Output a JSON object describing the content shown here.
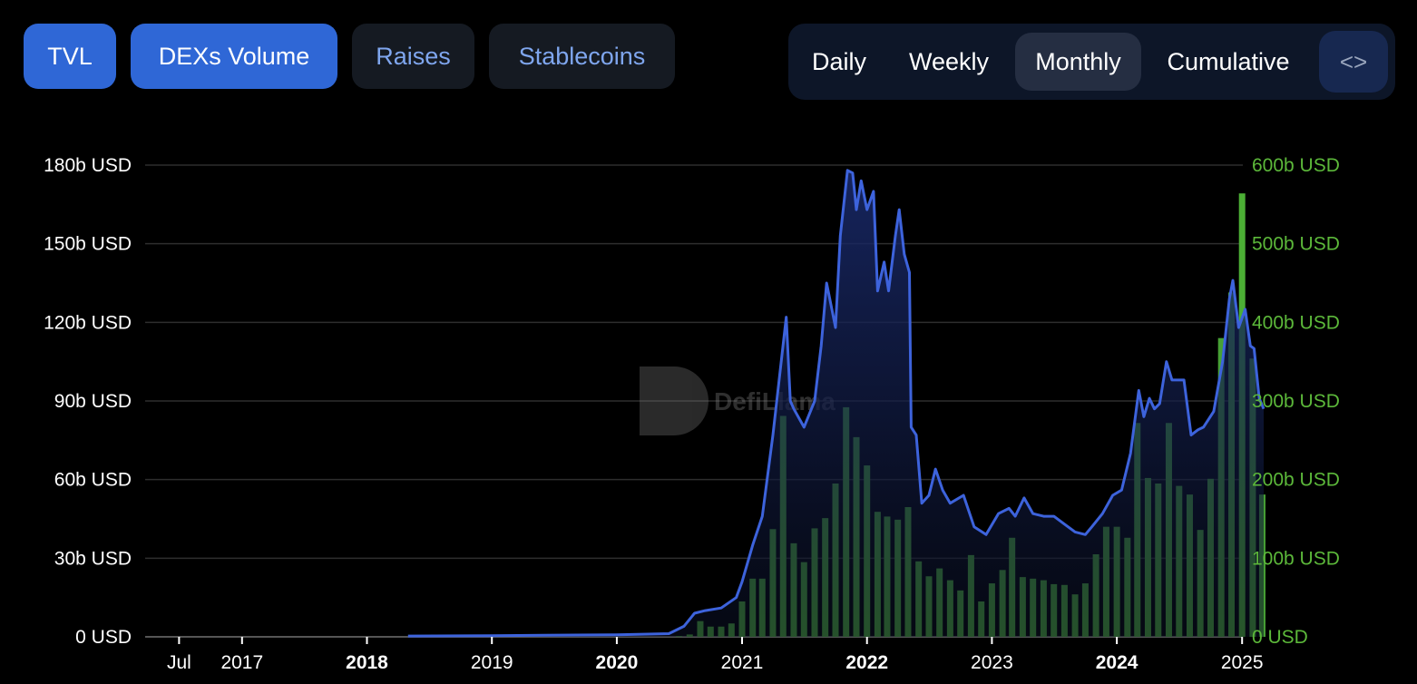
{
  "tabs": [
    {
      "label": "TVL",
      "active": true
    },
    {
      "label": "DEXs Volume",
      "active": true
    },
    {
      "label": "Raises",
      "active": false
    },
    {
      "label": "Stablecoins",
      "active": false
    }
  ],
  "periods": {
    "items": [
      "Daily",
      "Weekly",
      "Monthly",
      "Cumulative"
    ],
    "selected": "Monthly",
    "embed_icon": "code-icon",
    "embed_label": "<>"
  },
  "watermark": "DefiLlama",
  "colors": {
    "tvl": "#3d63dc",
    "volume": "#4ea83a",
    "right_axis": "#5cb83a",
    "background": "#000000"
  },
  "chart_data": {
    "type": "bar+line",
    "grid": true,
    "x_ticks": [
      {
        "label": "Jul",
        "date": "2016-07-01",
        "bold": false
      },
      {
        "label": "2017",
        "date": "2017-01-01",
        "bold": false
      },
      {
        "label": "2018",
        "date": "2018-01-01",
        "bold": true
      },
      {
        "label": "2019",
        "date": "2019-01-01",
        "bold": false
      },
      {
        "label": "2020",
        "date": "2020-01-01",
        "bold": true
      },
      {
        "label": "2021",
        "date": "2021-01-01",
        "bold": false
      },
      {
        "label": "2022",
        "date": "2022-01-01",
        "bold": true
      },
      {
        "label": "2023",
        "date": "2023-01-01",
        "bold": false
      },
      {
        "label": "2024",
        "date": "2024-01-01",
        "bold": true
      },
      {
        "label": "2025",
        "date": "2025-01-01",
        "bold": false
      }
    ],
    "y_left": {
      "ticks": [
        "0 USD",
        "30b USD",
        "60b USD",
        "90b USD",
        "120b USD",
        "150b USD",
        "180b USD"
      ],
      "range": [
        0,
        180
      ]
    },
    "y_right": {
      "ticks": [
        "0 USD",
        "100b USD",
        "200b USD",
        "300b USD",
        "400b USD",
        "500b USD",
        "600b USD"
      ],
      "range": [
        0,
        600
      ]
    },
    "series": [
      {
        "name": "TVL",
        "type": "area-line",
        "axis": "left",
        "points": [
          [
            "2018-05-01",
            0.3
          ],
          [
            "2019-01-01",
            0.4
          ],
          [
            "2019-06-01",
            0.6
          ],
          [
            "2020-01-01",
            0.8
          ],
          [
            "2020-06-01",
            1.2
          ],
          [
            "2020-07-15",
            4
          ],
          [
            "2020-08-15",
            9
          ],
          [
            "2020-09-15",
            10
          ],
          [
            "2020-11-01",
            11
          ],
          [
            "2020-12-15",
            15
          ],
          [
            "2021-01-01",
            21
          ],
          [
            "2021-02-01",
            35
          ],
          [
            "2021-03-01",
            46
          ],
          [
            "2021-04-01",
            77
          ],
          [
            "2021-05-10",
            122
          ],
          [
            "2021-05-22",
            90
          ],
          [
            "2021-06-01",
            87
          ],
          [
            "2021-07-01",
            80
          ],
          [
            "2021-08-01",
            90
          ],
          [
            "2021-08-20",
            111
          ],
          [
            "2021-09-05",
            135
          ],
          [
            "2021-10-01",
            118
          ],
          [
            "2021-10-15",
            153
          ],
          [
            "2021-11-05",
            178
          ],
          [
            "2021-11-20",
            177
          ],
          [
            "2021-12-01",
            163
          ],
          [
            "2021-12-15",
            174
          ],
          [
            "2022-01-01",
            163
          ],
          [
            "2022-01-20",
            170
          ],
          [
            "2022-02-01",
            132
          ],
          [
            "2022-02-20",
            143
          ],
          [
            "2022-03-05",
            132
          ],
          [
            "2022-03-25",
            153
          ],
          [
            "2022-04-05",
            163
          ],
          [
            "2022-04-20",
            146
          ],
          [
            "2022-05-05",
            139
          ],
          [
            "2022-05-10",
            80
          ],
          [
            "2022-05-25",
            77
          ],
          [
            "2022-06-10",
            51
          ],
          [
            "2022-07-01",
            54
          ],
          [
            "2022-07-20",
            64
          ],
          [
            "2022-08-10",
            56
          ],
          [
            "2022-09-01",
            51
          ],
          [
            "2022-10-10",
            54
          ],
          [
            "2022-11-10",
            42
          ],
          [
            "2022-12-15",
            39
          ],
          [
            "2023-01-20",
            47
          ],
          [
            "2023-02-20",
            49
          ],
          [
            "2023-03-10",
            46
          ],
          [
            "2023-04-05",
            53
          ],
          [
            "2023-05-01",
            47
          ],
          [
            "2023-06-01",
            46
          ],
          [
            "2023-07-01",
            46
          ],
          [
            "2023-08-01",
            43
          ],
          [
            "2023-09-01",
            40
          ],
          [
            "2023-10-01",
            39
          ],
          [
            "2023-10-20",
            42
          ],
          [
            "2023-11-20",
            47
          ],
          [
            "2023-12-20",
            54
          ],
          [
            "2024-01-15",
            56
          ],
          [
            "2024-02-10",
            70
          ],
          [
            "2024-03-05",
            94
          ],
          [
            "2024-03-20",
            84
          ],
          [
            "2024-04-05",
            91
          ],
          [
            "2024-04-20",
            87
          ],
          [
            "2024-05-05",
            89
          ],
          [
            "2024-05-25",
            105
          ],
          [
            "2024-06-10",
            98
          ],
          [
            "2024-07-15",
            98
          ],
          [
            "2024-08-05",
            77
          ],
          [
            "2024-08-25",
            79
          ],
          [
            "2024-09-10",
            80
          ],
          [
            "2024-10-10",
            86
          ],
          [
            "2024-11-05",
            105
          ],
          [
            "2024-11-25",
            129
          ],
          [
            "2024-12-05",
            136
          ],
          [
            "2024-12-22",
            118
          ],
          [
            "2025-01-10",
            125
          ],
          [
            "2025-01-25",
            111
          ],
          [
            "2025-02-05",
            110
          ],
          [
            "2025-02-20",
            91
          ],
          [
            "2025-03-05",
            87
          ]
        ]
      },
      {
        "name": "DEXs Volume",
        "type": "bar",
        "axis": "right",
        "start_month": "2020-07",
        "values": [
          1,
          3,
          20,
          13,
          13,
          17,
          45,
          74,
          74,
          137,
          281,
          119,
          95,
          138,
          151,
          195,
          292,
          254,
          218,
          159,
          153,
          149,
          165,
          96,
          77,
          87,
          72,
          59,
          104,
          45,
          68,
          85,
          126,
          76,
          74,
          72,
          67,
          66,
          54,
          68,
          105,
          140,
          140,
          126,
          272,
          202,
          195,
          272,
          192,
          181,
          136,
          201,
          380,
          438,
          564,
          354,
          181
        ]
      }
    ]
  }
}
